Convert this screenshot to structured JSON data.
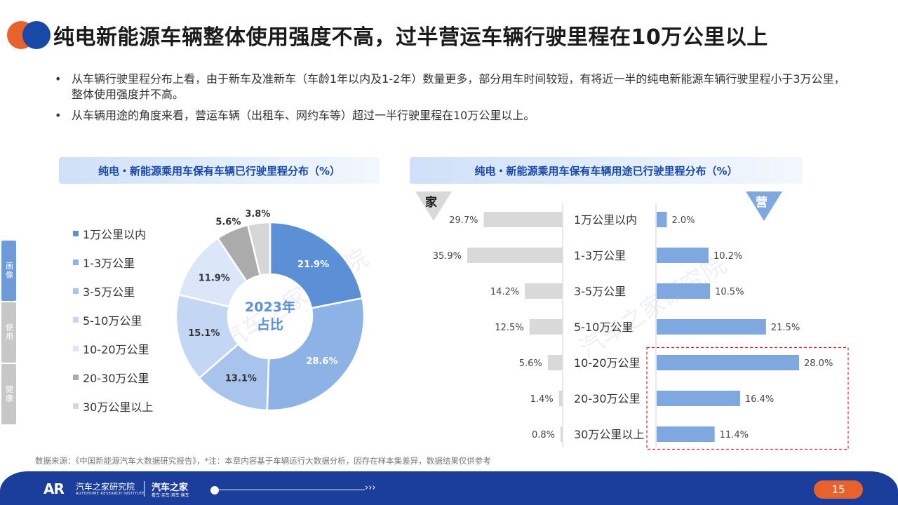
{
  "page_title": "纯电新能源车辆整体使用强度不高，过半营运车辆行驶里程在10万公里以上",
  "bullets": [
    "从车辆行驶里程分布上看，由于新车及准新车（车龄1年以内及1-2年）数量更多，部分用车时间较短，有将近一半的纯电新能源车辆行驶里程小于3万公里，整体使用强度并不高。",
    "从车辆用途的角度来看，营运车辆（出租车、网约车等）超过一半行驶里程在10万公里以上。"
  ],
  "side_tabs": [
    {
      "label": "画像",
      "color": "#6f9ad8"
    },
    {
      "label": "使用",
      "color": "#c7c7c7"
    },
    {
      "label": "健康",
      "color": "#c7c7c7"
    }
  ],
  "watermark": "汽车之家研究院",
  "colors": {
    "accent_blue": "#1848a8",
    "accent_orange": "#e8632b",
    "bar_blue": "#7fa8e0",
    "bar_grey": "#d9d9d9",
    "highlight_red": "#e02020"
  },
  "chart_data": [
    {
      "type": "pie",
      "title": "纯电・新能源乘用车保有车辆已行驶里程分布（%）",
      "center_label": [
        "2023年",
        "占比"
      ],
      "legend_position": "left",
      "slices": [
        {
          "label": "1万公里以内",
          "value": 21.9,
          "display": "21.9%",
          "color": "#5b8fd6"
        },
        {
          "label": "1-3万公里",
          "value": 28.6,
          "display": "28.6%",
          "color": "#8db2e6"
        },
        {
          "label": "3-5万公里",
          "value": 13.1,
          "display": "13.1%",
          "color": "#a9c4ec"
        },
        {
          "label": "5-10万公里",
          "value": 15.1,
          "display": "15.1%",
          "color": "#c3d6f3"
        },
        {
          "label": "10-20万公里",
          "value": 11.9,
          "display": "11.9%",
          "color": "#dbe6f8"
        },
        {
          "label": "20-30万公里",
          "value": 5.6,
          "display": "5.6%",
          "color": "#ababab"
        },
        {
          "label": "30万公里以上",
          "value": 3.8,
          "display": "3.8%",
          "color": "#d6d6d6"
        }
      ]
    },
    {
      "type": "bar",
      "orientation": "horizontal-butterfly",
      "title": "纯电・新能源乘用车保有车辆用途已行驶里程分布（%）",
      "categories": [
        "1万公里以内",
        "1-3万公里",
        "3-5万公里",
        "5-10万公里",
        "10-20万公里",
        "20-30万公里",
        "30万公里以上"
      ],
      "series": [
        {
          "name": "家",
          "side": "left",
          "color": "#d9d9d9",
          "values": [
            29.7,
            35.9,
            14.2,
            12.5,
            5.6,
            1.4,
            0.8
          ],
          "labels": [
            "29.7%",
            "35.9%",
            "14.2%",
            "12.5%",
            "5.6%",
            "1.4%",
            "0.8%"
          ]
        },
        {
          "name": "营",
          "side": "right",
          "color": "#7fa8e0",
          "values": [
            2.0,
            10.2,
            10.5,
            21.5,
            28.0,
            16.4,
            11.4
          ],
          "labels": [
            "2.0%",
            "10.2%",
            "10.5%",
            "21.5%",
            "28.0%",
            "16.4%",
            "11.4%"
          ]
        }
      ],
      "highlight_categories": [
        "10-20万公里",
        "20-30万公里",
        "30万公里以上"
      ],
      "highlight_series": "营"
    }
  ],
  "source": "数据来源：《中国新能源汽车大数据研究报告》，*注：本章内容基于车辆运行大数据分析，因存在样本集差异，数据结果仅供参考",
  "footer": {
    "logo_mark": "AR",
    "institute_name": "汽车之家研究院",
    "institute_en": "AUTOHOME RESEARCH INSTITUTE",
    "brand": "汽车之家",
    "brand_slogan": "看车·买车·用车·换车",
    "arrows": "›››",
    "page_number": "15"
  }
}
